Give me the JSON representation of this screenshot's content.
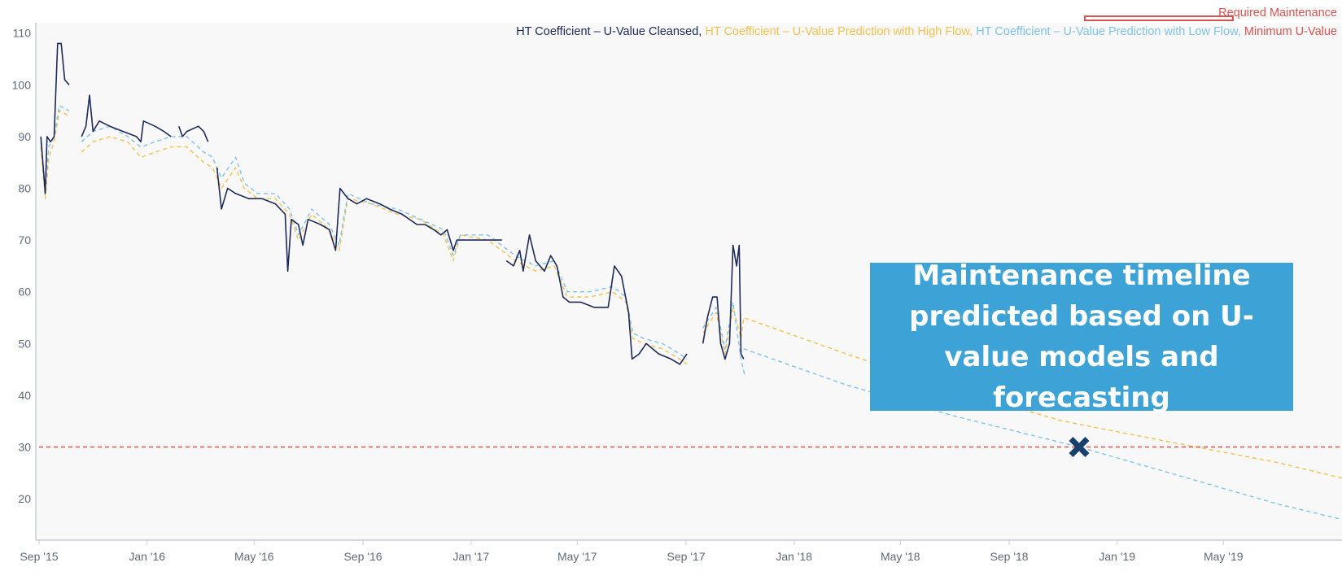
{
  "colors": {
    "cleansed": "#1f2a5a",
    "high_flow": "#f2c14e",
    "low_flow": "#7fc3ea",
    "minimum": "#d9534f",
    "callout_bg": "#3da3d6",
    "marker": "#17406d",
    "plot_bg": "#f8f8f8"
  },
  "callout": {
    "text": "Maintenance timeline predicted based on U-value models and forecasting"
  },
  "marker_icon": "x-mark-icon",
  "chart_data": {
    "type": "line",
    "title": "",
    "xlabel": "",
    "ylabel": "",
    "x_range": [
      "2015-09-01",
      "2019-09-12"
    ],
    "ylim": [
      12,
      112
    ],
    "y_ticks": [
      20,
      30,
      40,
      50,
      60,
      70,
      80,
      90,
      100,
      110
    ],
    "x_ticks": [
      {
        "date": "2015-09-01",
        "label": "Sep '15"
      },
      {
        "date": "2016-01-01",
        "label": "Jan '16"
      },
      {
        "date": "2016-05-01",
        "label": "May '16"
      },
      {
        "date": "2016-09-01",
        "label": "Sep '16"
      },
      {
        "date": "2017-01-01",
        "label": "Jan '17"
      },
      {
        "date": "2017-05-01",
        "label": "May '17"
      },
      {
        "date": "2017-09-01",
        "label": "Sep '17"
      },
      {
        "date": "2018-01-01",
        "label": "Jan '18"
      },
      {
        "date": "2018-05-01",
        "label": "May '18"
      },
      {
        "date": "2018-09-01",
        "label": "Sep '18"
      },
      {
        "date": "2019-01-01",
        "label": "Jan '19"
      },
      {
        "date": "2019-05-01",
        "label": "May '19"
      }
    ],
    "grid": false,
    "legend_position": "top-right",
    "legend_label": "Required Maintenance",
    "series": [
      {
        "name": "HT Coefficient – U-Value Cleansed",
        "color_key": "cleansed",
        "style": "solid",
        "points": [
          [
            "2015-09-03",
            90
          ],
          [
            "2015-09-08",
            79
          ],
          [
            "2015-09-10",
            90
          ],
          [
            "2015-09-14",
            89
          ],
          [
            "2015-09-18",
            90
          ],
          [
            "2015-09-22",
            108
          ],
          [
            "2015-09-26",
            108
          ],
          [
            "2015-09-30",
            101
          ],
          [
            "2015-10-05",
            100
          ],
          null,
          [
            "2015-10-19",
            90
          ],
          [
            "2015-10-24",
            92
          ],
          [
            "2015-10-28",
            98
          ],
          [
            "2015-11-01",
            91
          ],
          [
            "2015-11-08",
            93
          ],
          [
            "2015-11-20",
            92
          ],
          [
            "2015-12-05",
            91
          ],
          [
            "2015-12-20",
            90
          ],
          [
            "2015-12-25",
            89
          ],
          [
            "2015-12-28",
            93
          ],
          [
            "2016-01-10",
            92
          ],
          [
            "2016-01-20",
            91
          ],
          [
            "2016-01-28",
            90
          ],
          null,
          [
            "2016-02-06",
            92
          ],
          [
            "2016-02-10",
            90
          ],
          [
            "2016-02-15",
            91
          ],
          [
            "2016-02-28",
            92
          ],
          [
            "2016-03-05",
            91
          ],
          [
            "2016-03-10",
            89
          ],
          null,
          [
            "2016-03-20",
            84
          ],
          [
            "2016-03-25",
            76
          ],
          [
            "2016-04-01",
            80
          ],
          [
            "2016-04-10",
            79
          ],
          [
            "2016-04-25",
            78
          ],
          [
            "2016-05-10",
            78
          ],
          [
            "2016-05-25",
            77
          ],
          [
            "2016-06-05",
            75
          ],
          [
            "2016-06-08",
            64
          ],
          [
            "2016-06-12",
            74
          ],
          [
            "2016-06-20",
            73
          ],
          [
            "2016-06-25",
            69
          ],
          [
            "2016-07-01",
            74
          ],
          [
            "2016-07-15",
            73
          ],
          [
            "2016-07-25",
            72
          ],
          [
            "2016-08-01",
            68
          ],
          [
            "2016-08-06",
            80
          ],
          [
            "2016-08-15",
            78
          ],
          [
            "2016-08-25",
            77
          ],
          [
            "2016-09-05",
            78
          ],
          [
            "2016-09-20",
            77
          ],
          [
            "2016-10-01",
            76
          ],
          [
            "2016-10-15",
            75
          ],
          [
            "2016-11-01",
            73
          ],
          [
            "2016-11-10",
            73
          ],
          [
            "2016-11-20",
            72
          ],
          [
            "2016-11-28",
            71
          ],
          [
            "2016-12-05",
            72
          ],
          [
            "2016-12-12",
            68
          ],
          [
            "2016-12-16",
            70
          ],
          [
            "2017-01-05",
            70
          ],
          [
            "2017-01-25",
            70
          ],
          [
            "2017-02-05",
            70
          ],
          null,
          [
            "2017-02-10",
            66
          ],
          [
            "2017-02-18",
            65
          ],
          [
            "2017-02-25",
            68
          ],
          [
            "2017-03-01",
            64
          ],
          [
            "2017-03-08",
            71
          ],
          [
            "2017-03-15",
            66
          ],
          [
            "2017-03-25",
            64
          ],
          [
            "2017-04-01",
            67
          ],
          [
            "2017-04-08",
            65
          ],
          [
            "2017-04-15",
            59
          ],
          [
            "2017-04-22",
            58
          ],
          [
            "2017-05-05",
            58
          ],
          [
            "2017-05-20",
            57
          ],
          [
            "2017-06-05",
            57
          ],
          [
            "2017-06-12",
            65
          ],
          [
            "2017-06-20",
            63
          ],
          [
            "2017-06-28",
            56
          ],
          [
            "2017-07-02",
            47
          ],
          [
            "2017-07-10",
            48
          ],
          [
            "2017-07-18",
            50
          ],
          [
            "2017-08-01",
            48
          ],
          [
            "2017-08-15",
            47
          ],
          [
            "2017-08-25",
            46
          ],
          [
            "2017-09-02",
            48
          ],
          null,
          [
            "2017-09-20",
            50
          ],
          [
            "2017-09-25",
            55
          ],
          [
            "2017-10-01",
            59
          ],
          [
            "2017-10-06",
            59
          ],
          [
            "2017-10-10",
            50
          ],
          [
            "2017-10-15",
            47
          ],
          [
            "2017-10-20",
            50
          ],
          [
            "2017-10-24",
            69
          ],
          [
            "2017-10-28",
            65
          ],
          [
            "2017-10-31",
            69
          ],
          [
            "2017-11-02",
            48
          ],
          [
            "2017-11-05",
            47
          ]
        ]
      },
      {
        "name": "HT Coefficient – U-Value Prediction with High Flow",
        "color_key": "high_flow",
        "style": "dashed",
        "points": [
          [
            "2015-09-03",
            88
          ],
          [
            "2015-09-08",
            78
          ],
          [
            "2015-09-12",
            86
          ],
          [
            "2015-09-18",
            89
          ],
          [
            "2015-09-24",
            95
          ],
          [
            "2015-10-05",
            94
          ],
          null,
          [
            "2015-10-19",
            87
          ],
          [
            "2015-11-01",
            89
          ],
          [
            "2015-11-20",
            90
          ],
          [
            "2015-12-10",
            89
          ],
          [
            "2015-12-25",
            86
          ],
          [
            "2016-01-10",
            87
          ],
          [
            "2016-01-28",
            88
          ],
          [
            "2016-02-15",
            88
          ],
          [
            "2016-03-05",
            85
          ],
          [
            "2016-03-15",
            84
          ],
          [
            "2016-03-25",
            80
          ],
          [
            "2016-04-10",
            84
          ],
          [
            "2016-04-20",
            80
          ],
          [
            "2016-05-05",
            78
          ],
          [
            "2016-05-25",
            78
          ],
          [
            "2016-06-10",
            75
          ],
          [
            "2016-06-20",
            70
          ],
          [
            "2016-07-05",
            75
          ],
          [
            "2016-07-25",
            72
          ],
          [
            "2016-08-05",
            68
          ],
          [
            "2016-08-15",
            78
          ],
          [
            "2016-09-10",
            77
          ],
          [
            "2016-10-10",
            75
          ],
          [
            "2016-11-05",
            74
          ],
          [
            "2016-12-01",
            71
          ],
          [
            "2016-12-12",
            66
          ],
          [
            "2016-12-20",
            71
          ],
          [
            "2017-01-20",
            70
          ],
          [
            "2017-02-20",
            66
          ],
          [
            "2017-03-15",
            64
          ],
          [
            "2017-04-05",
            65
          ],
          [
            "2017-04-20",
            59
          ],
          [
            "2017-05-15",
            59
          ],
          [
            "2017-06-10",
            60
          ],
          [
            "2017-06-25",
            58
          ],
          [
            "2017-07-03",
            51
          ],
          [
            "2017-07-15",
            50
          ],
          [
            "2017-08-05",
            49
          ],
          [
            "2017-08-25",
            47
          ],
          [
            "2017-09-02",
            46
          ],
          null,
          [
            "2017-09-20",
            52
          ],
          [
            "2017-10-05",
            56
          ],
          [
            "2017-10-15",
            48
          ],
          [
            "2017-10-24",
            57
          ],
          [
            "2017-11-02",
            51
          ],
          [
            "2017-11-05",
            55
          ],
          [
            "2018-03-01",
            48
          ],
          [
            "2018-07-01",
            41
          ],
          [
            "2018-11-01",
            35
          ],
          [
            "2019-03-01",
            31
          ],
          [
            "2019-07-01",
            27
          ],
          [
            "2019-09-12",
            24
          ]
        ]
      },
      {
        "name": "HT Coefficient – U-Value Prediction with Low Flow",
        "color_key": "low_flow",
        "style": "dashed",
        "points": [
          [
            "2015-09-03",
            89
          ],
          [
            "2015-09-08",
            80
          ],
          [
            "2015-09-12",
            88
          ],
          [
            "2015-09-18",
            90
          ],
          [
            "2015-09-24",
            96
          ],
          [
            "2015-10-05",
            95
          ],
          null,
          [
            "2015-10-19",
            89
          ],
          [
            "2015-11-01",
            91
          ],
          [
            "2015-11-20",
            92
          ],
          [
            "2015-12-10",
            90
          ],
          [
            "2015-12-25",
            88
          ],
          [
            "2016-01-10",
            89
          ],
          [
            "2016-01-28",
            90
          ],
          [
            "2016-02-15",
            90
          ],
          [
            "2016-03-05",
            87
          ],
          [
            "2016-03-15",
            86
          ],
          [
            "2016-03-25",
            82
          ],
          [
            "2016-04-10",
            86
          ],
          [
            "2016-04-20",
            81
          ],
          [
            "2016-05-05",
            79
          ],
          [
            "2016-05-25",
            79
          ],
          [
            "2016-06-10",
            76
          ],
          [
            "2016-06-20",
            71
          ],
          [
            "2016-07-05",
            76
          ],
          [
            "2016-07-25",
            73
          ],
          [
            "2016-08-05",
            69
          ],
          [
            "2016-08-15",
            79
          ],
          [
            "2016-09-10",
            77
          ],
          [
            "2016-10-10",
            76
          ],
          [
            "2016-11-05",
            74
          ],
          [
            "2016-12-01",
            72
          ],
          [
            "2016-12-12",
            67
          ],
          [
            "2016-12-20",
            71
          ],
          [
            "2017-01-20",
            71
          ],
          [
            "2017-02-20",
            67
          ],
          [
            "2017-03-15",
            65
          ],
          [
            "2017-04-05",
            66
          ],
          [
            "2017-04-20",
            60
          ],
          [
            "2017-05-15",
            60
          ],
          [
            "2017-06-10",
            61
          ],
          [
            "2017-06-25",
            59
          ],
          [
            "2017-07-03",
            52
          ],
          [
            "2017-07-15",
            51
          ],
          [
            "2017-08-05",
            50
          ],
          [
            "2017-08-25",
            48
          ],
          [
            "2017-09-02",
            47
          ],
          null,
          [
            "2017-09-20",
            53
          ],
          [
            "2017-10-05",
            57
          ],
          [
            "2017-10-15",
            49
          ],
          [
            "2017-10-24",
            58
          ],
          [
            "2017-11-02",
            47
          ],
          [
            "2017-11-06",
            44
          ],
          null,
          [
            "2017-11-05",
            49
          ],
          [
            "2018-03-01",
            42
          ],
          [
            "2018-07-01",
            36
          ],
          [
            "2018-11-19",
            30
          ],
          [
            "2019-03-01",
            25
          ],
          [
            "2019-07-01",
            19
          ],
          [
            "2019-09-12",
            16
          ]
        ]
      },
      {
        "name": "Minimum U-Value",
        "color_key": "minimum",
        "style": "dashed",
        "points": [
          [
            "2015-09-01",
            30
          ],
          [
            "2019-09-12",
            30
          ]
        ]
      }
    ],
    "annotations": [
      {
        "type": "marker",
        "date": "2018-11-19",
        "value": 30
      }
    ]
  }
}
